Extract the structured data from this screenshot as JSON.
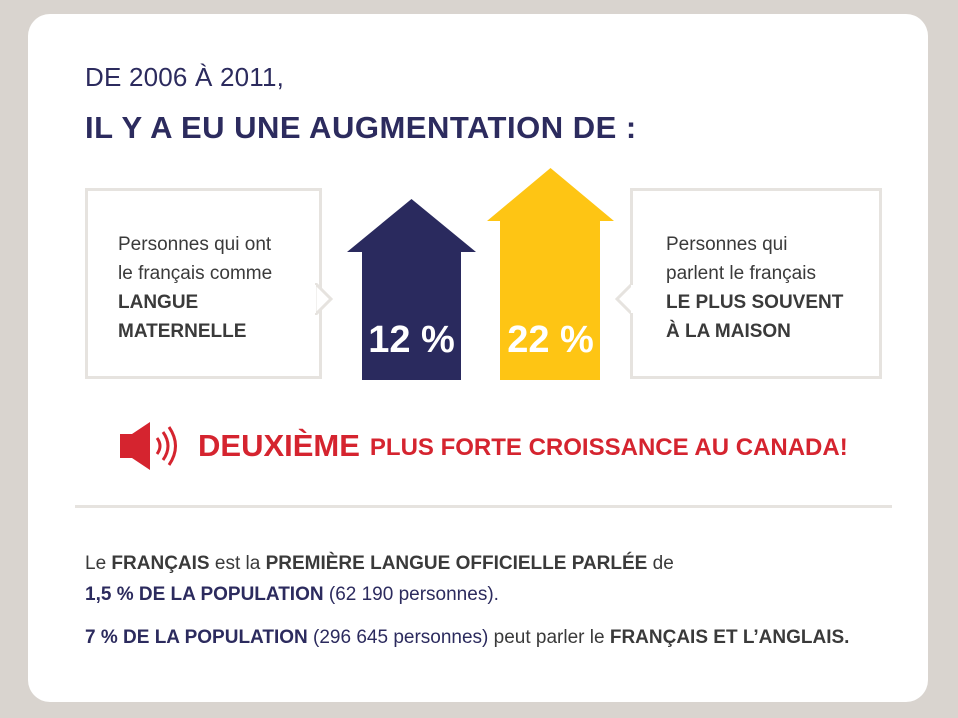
{
  "heading": {
    "line1": "DE 2006 À 2011,",
    "line2": "IL Y A EU UNE AUGMENTATION DE :"
  },
  "callout_left": {
    "line1": "Personnes qui ont",
    "line2": "le français comme",
    "strong1": "LANGUE",
    "strong2": "MATERNELLE"
  },
  "callout_right": {
    "line1": "Personnes qui",
    "line2": "parlent le français",
    "strong1": "LE PLUS SOUVENT",
    "strong2": "À LA MAISON"
  },
  "arrows": {
    "left": {
      "value": "12 %",
      "color": "#2a2a5e"
    },
    "right": {
      "value": "22 %",
      "color": "#fec514"
    }
  },
  "notice": {
    "icon": "speaker-icon",
    "big": "DEUXIÈME",
    "small": "PLUS FORTE CROISSANCE AU CANADA!",
    "color": "#d5242f"
  },
  "facts": {
    "p1_a": "Le ",
    "p1_b": "FRANÇAIS",
    "p1_c": " est la ",
    "p1_d": "PREMIÈRE LANGUE OFFICIELLE PARLÉE",
    "p1_e": " de",
    "p2_a": "1,5 % DE LA POPULATION",
    "p2_b": " (62 190 personnes).",
    "p3_a": "7 % DE LA POPULATION",
    "p3_b": " (296 645 personnes)",
    "p3_c": " peut parler le ",
    "p3_d": "FRANÇAIS ET L’ANGLAIS."
  }
}
